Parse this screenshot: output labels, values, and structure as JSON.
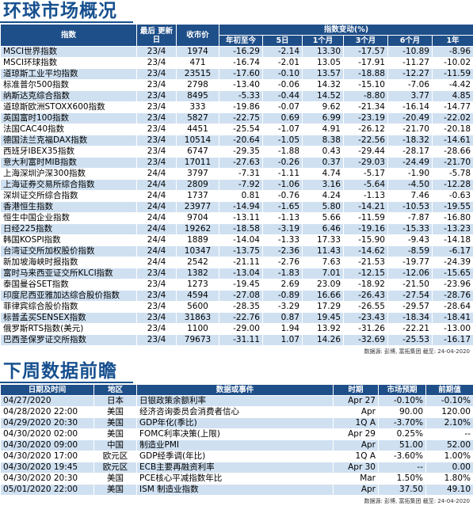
{
  "market": {
    "title": "环球市场概况",
    "headers": {
      "index": "指数",
      "last_update": "最后 更新日",
      "close": "收市价",
      "change_group": "指数变动(%)",
      "periods": [
        "年初至今",
        "5日",
        "1个月",
        "3个月",
        "6个月",
        "1年"
      ]
    },
    "rows": [
      [
        "MSCI世界指数",
        "23/4",
        "1974",
        "-16.29",
        "-2.14",
        "13.30",
        "-17.57",
        "-10.89",
        "-8.96"
      ],
      [
        "MSCI环球指数",
        "23/4",
        "471",
        "-16.74",
        "-2.01",
        "13.05",
        "-17.91",
        "-11.27",
        "-10.02"
      ],
      [
        "道琼斯工业平均指数",
        "23/4",
        "23515",
        "-17.60",
        "-0.10",
        "13.57",
        "-18.88",
        "-12.27",
        "-11.59"
      ],
      [
        "标准普尔500指数",
        "23/4",
        "2798",
        "-13.40",
        "-0.06",
        "14.32",
        "-15.10",
        "-7.06",
        "-4.42"
      ],
      [
        "纳斯达克综合指数",
        "23/4",
        "8495",
        "-5.33",
        "-0.44",
        "14.52",
        "-8.80",
        "3.77",
        "4.85"
      ],
      [
        "道琼斯欧洲STOXX600指数",
        "23/4",
        "333",
        "-19.86",
        "-0.07",
        "9.62",
        "-21.34",
        "-16.14",
        "-14.77"
      ],
      [
        "英国富时100指数",
        "23/4",
        "5827",
        "-22.75",
        "0.69",
        "6.99",
        "-23.19",
        "-20.49",
        "-22.02"
      ],
      [
        "法国CAC40指数",
        "23/4",
        "4451",
        "-25.54",
        "-1.07",
        "4.91",
        "-26.12",
        "-21.70",
        "-20.18"
      ],
      [
        "德国法兰克福DAX指数",
        "23/4",
        "10514",
        "-20.64",
        "-1.05",
        "8.38",
        "-22.56",
        "-18.32",
        "-14.61"
      ],
      [
        "西班牙IBEX35指数",
        "23/4",
        "6747",
        "-29.35",
        "-1.88",
        "0.43",
        "-29.44",
        "-28.17",
        "-28.66"
      ],
      [
        "意大利富时MIB指数",
        "23/4",
        "17011",
        "-27.63",
        "-0.26",
        "0.37",
        "-29.03",
        "-24.49",
        "-21.70"
      ],
      [
        "上海深圳沪深300指数",
        "24/4",
        "3797",
        "-7.31",
        "-1.11",
        "4.74",
        "-5.17",
        "-1.90",
        "-5.78"
      ],
      [
        "上海证券交易所综合指数",
        "24/4",
        "2809",
        "-7.92",
        "-1.06",
        "3.16",
        "-5.64",
        "-4.50",
        "-12.28"
      ],
      [
        "深圳证交所综合指数",
        "24/4",
        "1737",
        "0.81",
        "-0.76",
        "4.24",
        "-1.13",
        "7.46",
        "-0.63"
      ],
      [
        "香港恒生指数",
        "24/4",
        "23977",
        "-14.94",
        "-1.65",
        "5.80",
        "-14.21",
        "-10.53",
        "-19.55"
      ],
      [
        "恒生中国企业指数",
        "24/4",
        "9704",
        "-13.11",
        "-1.13",
        "5.66",
        "-11.59",
        "-7.87",
        "-16.80"
      ],
      [
        "日经225指数",
        "24/4",
        "19262",
        "-18.58",
        "-3.19",
        "6.46",
        "-19.16",
        "-15.33",
        "-13.23"
      ],
      [
        "韩国KOSPI指数",
        "24/4",
        "1889",
        "-14.04",
        "-1.33",
        "17.33",
        "-15.90",
        "-9.43",
        "-14.18"
      ],
      [
        "台湾证交所加权股价指数",
        "24/4",
        "10347",
        "-13.75",
        "-2.36",
        "11.43",
        "-14.62",
        "-8.59",
        "-6.17"
      ],
      [
        "新加坡海峡时报指数",
        "24/4",
        "2542",
        "-21.11",
        "-2.76",
        "7.63",
        "-21.53",
        "-19.77",
        "-24.39"
      ],
      [
        "富时马来西亚证交所KLCI指数",
        "23/4",
        "1382",
        "-13.04",
        "-1.83",
        "7.01",
        "-12.15",
        "-12.06",
        "-15.65"
      ],
      [
        "泰国曼谷SET指数",
        "23/4",
        "1273",
        "-19.45",
        "2.69",
        "23.09",
        "-18.92",
        "-21.50",
        "-23.96"
      ],
      [
        "印度尼西亚雅加达综合股价指数",
        "23/4",
        "4594",
        "-27.08",
        "-0.89",
        "16.66",
        "-26.43",
        "-27.54",
        "-28.76"
      ],
      [
        "菲律宾综合股价指数",
        "23/4",
        "5600",
        "-28.35",
        "-3.29",
        "17.29",
        "-26.55",
        "-29.57",
        "-28.64"
      ],
      [
        "标普孟买SENSEX指数",
        "23/4",
        "31863",
        "-22.76",
        "0.87",
        "19.45",
        "-23.43",
        "-18.34",
        "-18.41"
      ],
      [
        "俄罗斯RTS指数(美元)",
        "23/4",
        "1100",
        "-29.00",
        "1.94",
        "13.92",
        "-31.26",
        "-22.21",
        "-13.00"
      ],
      [
        "巴西圣保罗证交所指数",
        "23/4",
        "79673",
        "-31.11",
        "1.07",
        "14.26",
        "-32.69",
        "-25.53",
        "-16.17"
      ]
    ],
    "source": "数据源: 彭博, 富拓集团 截至: 24-04-2020"
  },
  "events": {
    "title": "下周数据前瞻",
    "headers": [
      "日期及时间",
      "地区",
      "数据或事件",
      "时期",
      "市场预期",
      "前期值"
    ],
    "rows": [
      [
        "04/27/2020",
        "日本",
        "日银政策余额利率",
        "Apr 27",
        "-0.10%",
        "-0.10%"
      ],
      [
        "04/28/2020 22:00",
        "美国",
        "经济咨询委员会消费者信心",
        "Apr",
        "90.00",
        "120.00"
      ],
      [
        "04/29/2020 20:30",
        "美国",
        "GDP年化(季比)",
        "1Q A",
        "-3.70%",
        "2.10%"
      ],
      [
        "04/30/2020 02:00",
        "美国",
        "FOMC利率决策(上限)",
        "Apr 29",
        "0.25%",
        "--"
      ],
      [
        "04/30/2020 09:00",
        "中国",
        "制造业PMI",
        "Apr",
        "51.00",
        "52.00"
      ],
      [
        "04/30/2020 17:00",
        "欧元区",
        "GDP经季调(年比)",
        "1Q A",
        "-3.60%",
        "1.00%"
      ],
      [
        "04/30/2020 19:45",
        "欧元区",
        "ECB主要再融资利率",
        "Apr 30",
        "--",
        "0.00"
      ],
      [
        "04/30/2020 20:30",
        "美国",
        "PCE核心平减指数年比",
        "Mar",
        "1.50%",
        "1.80%"
      ],
      [
        "05/01/2020 22:00",
        "美国",
        "ISM 制造业指数",
        "Apr",
        "37.50",
        "49.10"
      ]
    ],
    "source": "数据源: 彭博, 富拓集团 截至: 24-04-2020"
  },
  "colors": {
    "header_bg": "#1f4f88",
    "title": "#16508f",
    "stripe": "#cfe0f1"
  }
}
